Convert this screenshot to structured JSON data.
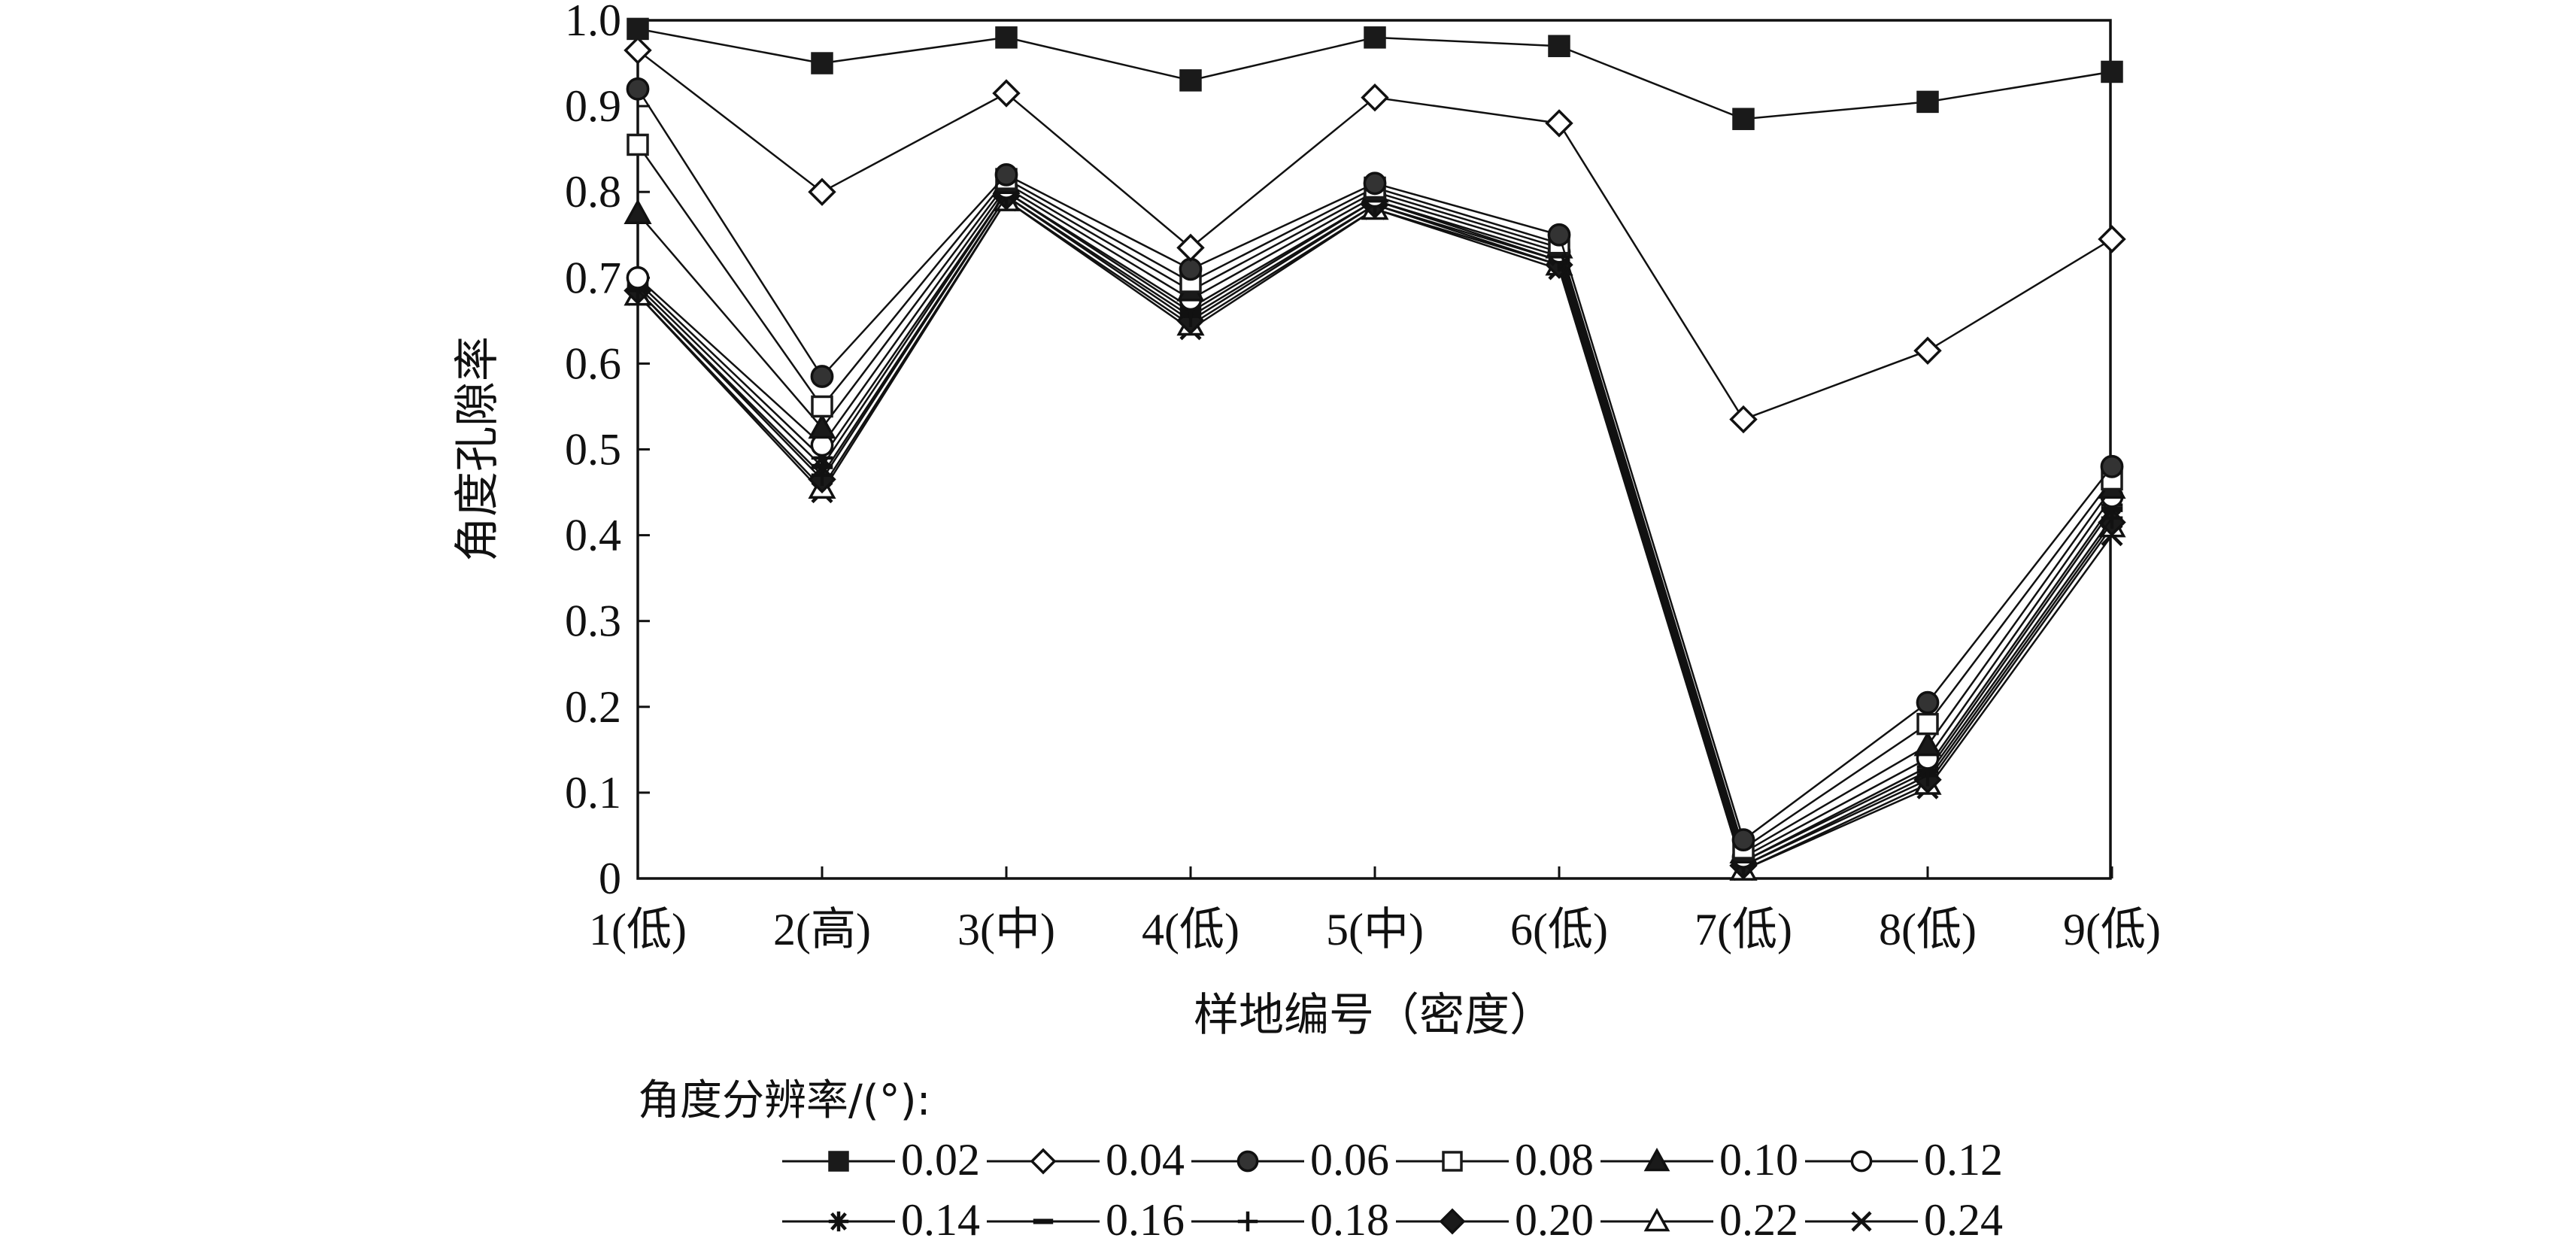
{
  "chart_data": {
    "type": "line",
    "categories": [
      "1(低)",
      "2(高)",
      "3(中)",
      "4(低)",
      "5(中)",
      "6(低)",
      "7(低)",
      "8(低)",
      "9(低)"
    ],
    "xlabel": "样地编号（密度）",
    "ylabel": "角度孔隙率",
    "ylim": [
      0,
      1.0
    ],
    "yticks": [
      "0",
      "0.1",
      "0.2",
      "0.3",
      "0.4",
      "0.5",
      "0.6",
      "0.7",
      "0.8",
      "0.9",
      "1.0"
    ],
    "grid": false,
    "legend_title": "角度分辨率/(°):",
    "legend_position": "bottom",
    "series": [
      {
        "name": "0.02",
        "marker": "filled-square",
        "values": [
          0.99,
          0.95,
          0.98,
          0.93,
          0.98,
          0.97,
          0.885,
          0.905,
          0.94
        ]
      },
      {
        "name": "0.04",
        "marker": "open-diamond",
        "values": [
          0.965,
          0.8,
          0.915,
          0.735,
          0.91,
          0.88,
          0.535,
          0.615,
          0.745
        ]
      },
      {
        "name": "0.06",
        "marker": "filled-circle",
        "values": [
          0.92,
          0.585,
          0.82,
          0.71,
          0.81,
          0.75,
          0.045,
          0.205,
          0.48
        ]
      },
      {
        "name": "0.08",
        "marker": "open-square",
        "values": [
          0.855,
          0.55,
          0.815,
          0.695,
          0.805,
          0.74,
          0.035,
          0.18,
          0.465
        ]
      },
      {
        "name": "0.10",
        "marker": "filled-triangle",
        "values": [
          0.775,
          0.525,
          0.81,
          0.685,
          0.8,
          0.735,
          0.03,
          0.155,
          0.455
        ]
      },
      {
        "name": "0.12",
        "marker": "open-circle",
        "values": [
          0.7,
          0.505,
          0.805,
          0.675,
          0.795,
          0.73,
          0.025,
          0.14,
          0.445
        ]
      },
      {
        "name": "0.14",
        "marker": "asterisk",
        "values": [
          0.695,
          0.49,
          0.8,
          0.665,
          0.79,
          0.725,
          0.02,
          0.13,
          0.435
        ]
      },
      {
        "name": "0.16",
        "marker": "dash",
        "values": [
          0.69,
          0.48,
          0.8,
          0.66,
          0.79,
          0.72,
          0.02,
          0.125,
          0.43
        ]
      },
      {
        "name": "0.18",
        "marker": "plus",
        "values": [
          0.685,
          0.47,
          0.795,
          0.655,
          0.785,
          0.72,
          0.015,
          0.12,
          0.42
        ]
      },
      {
        "name": "0.20",
        "marker": "filled-diamond",
        "values": [
          0.685,
          0.465,
          0.795,
          0.65,
          0.785,
          0.715,
          0.015,
          0.115,
          0.415
        ]
      },
      {
        "name": "0.22",
        "marker": "open-triangle",
        "values": [
          0.68,
          0.455,
          0.79,
          0.645,
          0.78,
          0.715,
          0.01,
          0.11,
          0.41
        ]
      },
      {
        "name": "0.24",
        "marker": "x-cross",
        "values": [
          0.68,
          0.45,
          0.79,
          0.64,
          0.78,
          0.71,
          0.01,
          0.105,
          0.4
        ]
      }
    ]
  }
}
